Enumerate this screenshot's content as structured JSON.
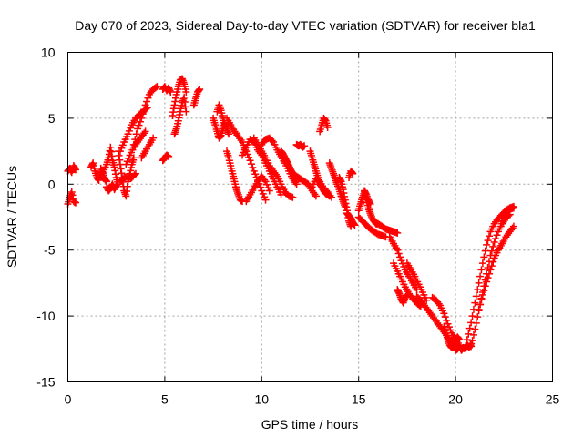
{
  "chart_data": {
    "type": "scatter",
    "title": "Day 070 of 2023, Sidereal Day-to-day VTEC variation (SDTVAR) for receiver bla1",
    "xlabel": "GPS time / hours",
    "ylabel": "SDTVAR / TECUs",
    "xlim": [
      0,
      25
    ],
    "ylim": [
      -15,
      10
    ],
    "xticks": [
      0,
      5,
      10,
      15,
      20,
      25
    ],
    "yticks": [
      -15,
      -10,
      -5,
      0,
      5,
      10
    ],
    "grid": true,
    "marker": "plus",
    "color": "#ff0000",
    "series": [
      {
        "name": "t0",
        "x": [
          0.0,
          0.1,
          0.2,
          0.3,
          0.4
        ],
        "y": [
          1.0,
          1.2,
          0.9,
          1.4,
          1.1
        ]
      },
      {
        "name": "t1",
        "x": [
          0.0,
          0.1,
          0.2,
          0.3,
          0.4
        ],
        "y": [
          -1.5,
          -1.0,
          -0.6,
          -1.3,
          -1.4
        ]
      },
      {
        "name": "t2",
        "x": [
          1.2,
          1.3,
          1.4,
          1.5,
          1.6,
          1.7,
          1.8,
          1.9,
          2.0
        ],
        "y": [
          1.3,
          1.6,
          1.0,
          0.5,
          0.3,
          1.2,
          0.8,
          0.4,
          0.2
        ]
      },
      {
        "name": "t3",
        "x": [
          1.6,
          1.8,
          2.0,
          2.1,
          2.2,
          2.3,
          2.4,
          2.5,
          2.6
        ],
        "y": [
          0.6,
          0.9,
          1.5,
          2.0,
          2.8,
          1.8,
          1.3,
          0.5,
          0.0
        ]
      },
      {
        "name": "t4",
        "x": [
          2.0,
          2.1,
          2.2,
          2.3,
          2.4,
          2.5
        ],
        "y": [
          -0.2,
          -0.5,
          -0.3,
          0.0,
          -0.4,
          -0.1
        ]
      },
      {
        "name": "t5",
        "x": [
          2.6,
          2.7,
          2.8,
          2.9,
          3.0,
          3.1,
          3.2,
          3.3,
          3.4
        ],
        "y": [
          2.5,
          1.5,
          0.5,
          -0.5,
          -0.9,
          0.2,
          0.8,
          1.5,
          2.0
        ]
      },
      {
        "name": "t6",
        "x": [
          2.7,
          2.9,
          3.1,
          3.3,
          3.5,
          3.7,
          3.9,
          4.1
        ],
        "y": [
          2.5,
          3.2,
          3.8,
          4.5,
          5.0,
          5.3,
          5.5,
          5.8
        ]
      },
      {
        "name": "t7",
        "x": [
          3.0,
          3.2,
          3.4,
          3.6,
          3.8,
          4.0
        ],
        "y": [
          1.5,
          2.2,
          2.8,
          3.2,
          3.6,
          4.0
        ]
      },
      {
        "name": "t8",
        "x": [
          3.4,
          3.6,
          3.8,
          4.0,
          4.2,
          4.4,
          4.6
        ],
        "y": [
          3.0,
          4.2,
          5.0,
          6.0,
          6.8,
          7.2,
          7.4
        ]
      },
      {
        "name": "t9",
        "x": [
          2.7,
          2.9,
          3.1,
          3.3,
          3.5
        ],
        "y": [
          0.2,
          0.5,
          0.6,
          0.5,
          0.8
        ]
      },
      {
        "name": "t10",
        "x": [
          3.8,
          4.0,
          4.2,
          4.4
        ],
        "y": [
          2.0,
          2.5,
          3.0,
          3.5
        ]
      },
      {
        "name": "t11",
        "x": [
          4.9,
          5.0,
          5.1,
          5.2
        ],
        "y": [
          1.8,
          2.0,
          2.2,
          2.1
        ]
      },
      {
        "name": "t12",
        "x": [
          4.9,
          5.0,
          5.1,
          5.2,
          5.3
        ],
        "y": [
          7.2,
          7.4,
          7.1,
          7.3,
          7.0
        ]
      },
      {
        "name": "t13",
        "x": [
          5.4,
          5.5,
          5.6,
          5.7,
          5.8,
          5.9,
          6.0,
          6.1
        ],
        "y": [
          5.2,
          6.0,
          6.8,
          7.4,
          7.9,
          8.0,
          7.6,
          7.0
        ]
      },
      {
        "name": "t14",
        "x": [
          5.5,
          5.6,
          5.7,
          5.8,
          5.9,
          6.0,
          6.1
        ],
        "y": [
          3.8,
          4.2,
          4.8,
          5.5,
          6.2,
          6.6,
          5.5
        ]
      },
      {
        "name": "t15",
        "x": [
          6.5,
          6.6,
          6.7,
          6.8
        ],
        "y": [
          6.0,
          6.5,
          7.0,
          7.2
        ]
      },
      {
        "name": "t16",
        "x": [
          7.5,
          7.6,
          7.7,
          7.8,
          7.9,
          8.0,
          8.1
        ],
        "y": [
          5.0,
          4.5,
          4.0,
          3.5,
          3.7,
          4.2,
          4.6
        ]
      },
      {
        "name": "t17",
        "x": [
          7.7,
          7.8,
          7.9,
          8.0,
          8.1,
          8.2,
          8.3
        ],
        "y": [
          5.5,
          6.0,
          5.6,
          5.0,
          4.5,
          4.2,
          3.8
        ]
      },
      {
        "name": "t18",
        "x": [
          8.2,
          8.4,
          8.6,
          8.8,
          9.0,
          9.2,
          9.4,
          9.6,
          9.8,
          10.0,
          10.2
        ],
        "y": [
          5.0,
          4.5,
          4.0,
          3.6,
          3.2,
          2.5,
          1.8,
          1.0,
          0.3,
          -0.5,
          -1.2
        ]
      },
      {
        "name": "t19",
        "x": [
          8.2,
          8.3,
          8.4,
          8.5,
          8.6,
          8.7,
          8.8,
          8.9,
          9.0
        ],
        "y": [
          2.5,
          2.0,
          1.4,
          0.8,
          0.2,
          -0.4,
          -0.8,
          -1.2,
          -1.3
        ]
      },
      {
        "name": "t20",
        "x": [
          9.0,
          9.2,
          9.4,
          9.6,
          9.8,
          10.0,
          10.2,
          10.4,
          10.6,
          10.8,
          11.0
        ],
        "y": [
          2.2,
          2.8,
          3.4,
          3.2,
          2.6,
          2.2,
          1.6,
          1.0,
          0.4,
          -0.2,
          -0.8
        ]
      },
      {
        "name": "t21",
        "x": [
          9.6,
          9.8,
          10.0,
          10.2,
          10.4,
          10.6,
          10.8,
          11.0,
          11.2,
          11.4,
          11.6
        ],
        "y": [
          3.5,
          3.0,
          2.5,
          2.0,
          1.4,
          1.0,
          0.6,
          0.0,
          -0.6,
          -0.9,
          -1.0
        ]
      },
      {
        "name": "t22",
        "x": [
          10.0,
          10.2,
          10.4,
          10.6,
          10.8,
          11.0,
          11.2,
          11.4,
          11.6,
          11.8
        ],
        "y": [
          3.0,
          3.4,
          3.5,
          3.2,
          2.6,
          2.1,
          1.6,
          1.0,
          0.4,
          0.0
        ]
      },
      {
        "name": "t23",
        "x": [
          9.2,
          9.4,
          9.6,
          9.8,
          10.0,
          10.2,
          10.4
        ],
        "y": [
          -1.3,
          -0.8,
          -0.3,
          0.2,
          0.6,
          0.2,
          -0.5
        ]
      },
      {
        "name": "t24",
        "x": [
          11.0,
          11.1,
          11.2,
          11.3,
          11.4,
          11.5,
          11.6,
          11.7,
          11.8
        ],
        "y": [
          2.5,
          2.3,
          2.0,
          1.7,
          1.4,
          1.1,
          0.8,
          0.5,
          0.2
        ]
      },
      {
        "name": "t25",
        "x": [
          11.6,
          11.8,
          12.0,
          12.2,
          12.4,
          12.6,
          12.8
        ],
        "y": [
          0.8,
          0.6,
          0.4,
          0.2,
          0.0,
          -0.5,
          -0.9
        ]
      },
      {
        "name": "t26",
        "x": [
          11.8,
          11.9,
          12.0,
          12.1,
          12.2
        ],
        "y": [
          3.0,
          2.9,
          3.0,
          2.8,
          2.9
        ]
      },
      {
        "name": "t27",
        "x": [
          12.5,
          12.6,
          12.7,
          12.8,
          12.9,
          13.0,
          13.1,
          13.2,
          13.3,
          13.4,
          13.5
        ],
        "y": [
          2.5,
          2.0,
          1.5,
          1.0,
          0.5,
          0.0,
          -0.2,
          -0.5,
          -0.7,
          -0.8,
          -0.9
        ]
      },
      {
        "name": "t28",
        "x": [
          12.6,
          12.8,
          13.0,
          13.2,
          13.4,
          13.6
        ],
        "y": [
          -0.2,
          0.4,
          0.2,
          -0.3,
          -0.6,
          -1.0
        ]
      },
      {
        "name": "t29",
        "x": [
          13.0,
          13.1,
          13.2,
          13.3,
          13.4
        ],
        "y": [
          4.0,
          4.5,
          5.0,
          4.8,
          4.3
        ]
      },
      {
        "name": "t30",
        "x": [
          13.5,
          13.6,
          13.7,
          13.8,
          13.9,
          14.0,
          14.1,
          14.2,
          14.3
        ],
        "y": [
          1.6,
          1.2,
          0.8,
          0.4,
          0.0,
          -0.4,
          -0.9,
          -1.3,
          -1.7
        ]
      },
      {
        "name": "t31",
        "x": [
          14.0,
          14.1,
          14.2,
          14.3,
          14.4,
          14.5,
          14.6
        ],
        "y": [
          0.5,
          0.2,
          -0.4,
          -1.2,
          -2.0,
          -2.8,
          -3.2
        ]
      },
      {
        "name": "t32",
        "x": [
          14.4,
          14.5,
          14.6,
          14.7,
          14.8
        ],
        "y": [
          -2.2,
          -2.4,
          -2.6,
          -2.9,
          -3.1
        ]
      },
      {
        "name": "t33",
        "x": [
          14.5,
          14.6,
          14.7
        ],
        "y": [
          0.5,
          1.0,
          0.8
        ]
      },
      {
        "name": "t34",
        "x": [
          15.0,
          15.1,
          15.2,
          15.3,
          15.4,
          15.5,
          15.6,
          15.7,
          15.8,
          15.9,
          16.0,
          16.2,
          16.4,
          16.6,
          16.8,
          17.0
        ],
        "y": [
          -2.0,
          -1.5,
          -1.0,
          -0.6,
          -1.2,
          -1.8,
          -2.2,
          -2.6,
          -2.8,
          -3.0,
          -3.0,
          -3.2,
          -3.4,
          -3.5,
          -3.6,
          -3.7
        ]
      },
      {
        "name": "t35",
        "x": [
          15.0,
          15.2,
          15.4,
          15.6,
          15.8,
          16.0,
          16.2,
          16.4
        ],
        "y": [
          -2.5,
          -2.8,
          -3.1,
          -3.4,
          -3.6,
          -3.8,
          -3.9,
          -4.0
        ]
      },
      {
        "name": "t36",
        "x": [
          15.3,
          15.4,
          15.5,
          15.6
        ],
        "y": [
          -0.5,
          -0.8,
          -1.2,
          -1.5
        ]
      },
      {
        "name": "t37",
        "x": [
          16.6,
          16.8,
          17.0,
          17.2,
          17.4,
          17.6,
          17.8,
          18.0
        ],
        "y": [
          -4.0,
          -4.5,
          -5.0,
          -5.8,
          -6.5,
          -7.0,
          -7.5,
          -8.0
        ]
      },
      {
        "name": "t38",
        "x": [
          16.8,
          17.0,
          17.2,
          17.4,
          17.6,
          17.8,
          18.0,
          18.2
        ],
        "y": [
          -6.0,
          -6.6,
          -7.2,
          -7.8,
          -8.3,
          -8.7,
          -9.0,
          -9.3
        ]
      },
      {
        "name": "t39",
        "x": [
          17.0,
          17.1,
          17.2,
          17.3,
          17.4,
          17.5
        ],
        "y": [
          -8.0,
          -8.3,
          -8.7,
          -9.0,
          -8.6,
          -8.4
        ]
      },
      {
        "name": "t40",
        "x": [
          17.5,
          17.7,
          17.9,
          18.1,
          18.3,
          18.5
        ],
        "y": [
          -6.0,
          -6.5,
          -7.0,
          -7.6,
          -8.2,
          -8.8
        ]
      },
      {
        "name": "t41",
        "x": [
          18.0,
          18.2,
          18.4,
          18.6,
          18.8,
          19.0,
          19.2,
          19.4,
          19.6,
          19.8,
          20.0
        ],
        "y": [
          -8.5,
          -8.8,
          -9.2,
          -9.6,
          -10.0,
          -10.4,
          -10.8,
          -11.2,
          -11.6,
          -12.0,
          -12.3
        ]
      },
      {
        "name": "t42",
        "x": [
          18.8,
          19.0,
          19.2,
          19.4,
          19.6,
          19.8,
          20.0,
          20.2
        ],
        "y": [
          -8.6,
          -8.8,
          -9.2,
          -9.8,
          -10.6,
          -11.3,
          -11.8,
          -12.2
        ]
      },
      {
        "name": "t43",
        "x": [
          19.4,
          19.5,
          19.6,
          19.7,
          19.8,
          19.9,
          20.0,
          20.1,
          20.2
        ],
        "y": [
          -10.8,
          -11.3,
          -11.8,
          -12.2,
          -12.4,
          -12.2,
          -11.9,
          -11.6,
          -11.8
        ]
      },
      {
        "name": "t44",
        "x": [
          20.0,
          20.1,
          20.2,
          20.3,
          20.4,
          20.5,
          20.6,
          20.7,
          20.8
        ],
        "y": [
          -12.6,
          -12.5,
          -12.3,
          -12.6,
          -12.4,
          -12.5,
          -12.2,
          -12.4,
          -12.1
        ]
      },
      {
        "name": "t45",
        "x": [
          20.6,
          20.8,
          21.0,
          21.2,
          21.4,
          21.6,
          21.8,
          22.0,
          22.2,
          22.4,
          22.6,
          22.8,
          23.0
        ],
        "y": [
          -11.8,
          -10.5,
          -9.0,
          -7.5,
          -6.0,
          -4.6,
          -3.6,
          -3.0,
          -2.6,
          -2.3,
          -2.0,
          -1.8,
          -1.7
        ]
      },
      {
        "name": "t46",
        "x": [
          20.8,
          21.0,
          21.2,
          21.4,
          21.6,
          21.8,
          22.0,
          22.2,
          22.4,
          22.6,
          22.8
        ],
        "y": [
          -12.3,
          -11.0,
          -9.6,
          -8.2,
          -6.8,
          -5.4,
          -4.4,
          -3.6,
          -3.0,
          -2.6,
          -2.3
        ]
      },
      {
        "name": "t47",
        "x": [
          21.2,
          21.4,
          21.6,
          21.8,
          22.0,
          22.2,
          22.4,
          22.6,
          22.8,
          23.0
        ],
        "y": [
          -9.5,
          -8.4,
          -7.4,
          -6.5,
          -5.6,
          -5.0,
          -4.5,
          -4.0,
          -3.6,
          -3.2
        ]
      },
      {
        "name": "t48",
        "x": [
          22.4,
          22.6,
          22.8,
          23.0
        ],
        "y": [
          -2.8,
          -2.2,
          -1.9,
          -1.8
        ]
      }
    ]
  }
}
